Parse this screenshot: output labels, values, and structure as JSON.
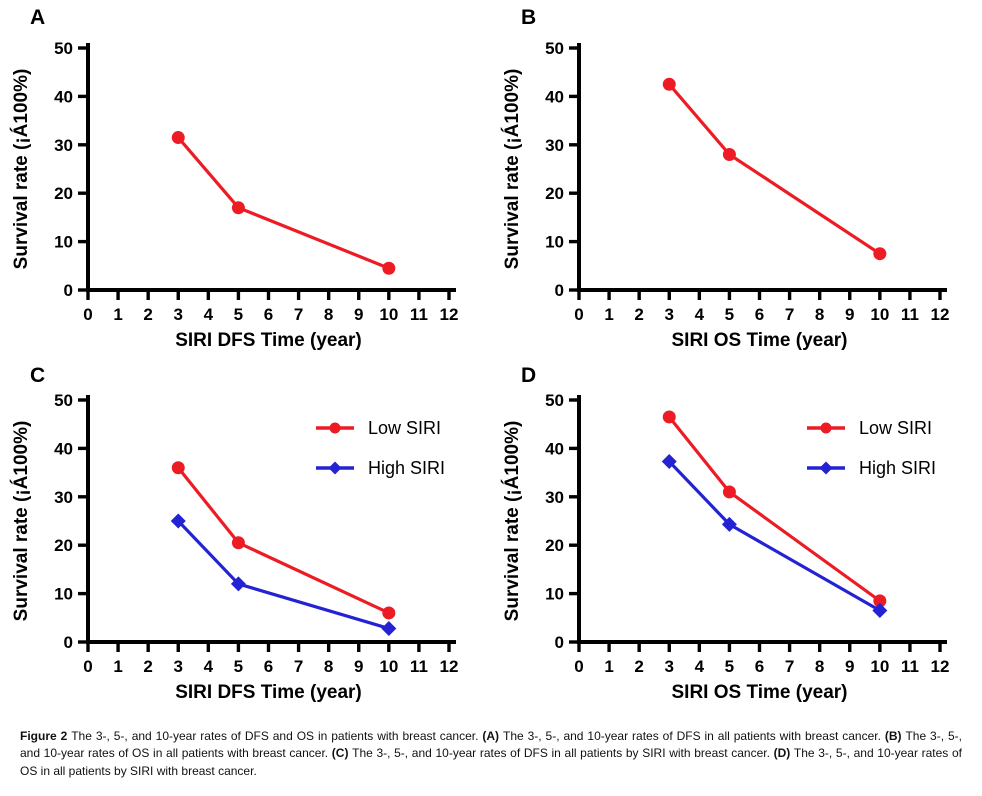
{
  "figure_label": "Figure 2",
  "colors": {
    "low_siri_red": "#ED1C24",
    "high_siri_blue": "#2323D3",
    "axis_black": "#000000"
  },
  "chart_data": [
    {
      "panel": "A",
      "type": "line",
      "xlabel": "SIRI DFS Time (year)",
      "ylabel": "Survival rate (¡Á100%)",
      "x": [
        3,
        5,
        10
      ],
      "xlim": [
        0,
        12
      ],
      "ylim": [
        0,
        50
      ],
      "xticks": [
        0,
        1,
        2,
        3,
        4,
        5,
        6,
        7,
        8,
        9,
        10,
        11,
        12
      ],
      "yticks": [
        0,
        10,
        20,
        30,
        40,
        50
      ],
      "grid": false,
      "legend": false,
      "series": [
        {
          "color": "#ED1C24",
          "marker": "circle",
          "values": [
            31.5,
            17,
            4.5
          ]
        }
      ]
    },
    {
      "panel": "B",
      "type": "line",
      "xlabel": "SIRI OS Time (year)",
      "ylabel": "Survival rate (¡Á100%)",
      "x": [
        3,
        5,
        10
      ],
      "xlim": [
        0,
        12
      ],
      "ylim": [
        0,
        50
      ],
      "xticks": [
        0,
        1,
        2,
        3,
        4,
        5,
        6,
        7,
        8,
        9,
        10,
        11,
        12
      ],
      "yticks": [
        0,
        10,
        20,
        30,
        40,
        50
      ],
      "grid": false,
      "legend": false,
      "series": [
        {
          "color": "#ED1C24",
          "marker": "circle",
          "values": [
            42.5,
            28,
            7.5
          ]
        }
      ]
    },
    {
      "panel": "C",
      "type": "line",
      "xlabel": "SIRI DFS Time (year)",
      "ylabel": "Survival rate (¡Á100%)",
      "x": [
        3,
        5,
        10
      ],
      "xlim": [
        0,
        12
      ],
      "ylim": [
        0,
        50
      ],
      "xticks": [
        0,
        1,
        2,
        3,
        4,
        5,
        6,
        7,
        8,
        9,
        10,
        11,
        12
      ],
      "yticks": [
        0,
        10,
        20,
        30,
        40,
        50
      ],
      "grid": false,
      "legend": true,
      "legend_position": "top-right",
      "series": [
        {
          "name": "Low SIRI",
          "color": "#ED1C24",
          "marker": "circle",
          "values": [
            36,
            20.5,
            6
          ]
        },
        {
          "name": "High SIRI",
          "color": "#2323D3",
          "marker": "diamond",
          "values": [
            25,
            12,
            2.8
          ]
        }
      ]
    },
    {
      "panel": "D",
      "type": "line",
      "xlabel": "SIRI OS Time (year)",
      "ylabel": "Survival rate (¡Á100%)",
      "x": [
        3,
        5,
        10
      ],
      "xlim": [
        0,
        12
      ],
      "ylim": [
        0,
        50
      ],
      "xticks": [
        0,
        1,
        2,
        3,
        4,
        5,
        6,
        7,
        8,
        9,
        10,
        11,
        12
      ],
      "yticks": [
        0,
        10,
        20,
        30,
        40,
        50
      ],
      "grid": false,
      "legend": true,
      "legend_position": "top-right",
      "series": [
        {
          "name": "Low SIRI",
          "color": "#ED1C24",
          "marker": "circle",
          "values": [
            46.5,
            31,
            8.5
          ]
        },
        {
          "name": "High SIRI",
          "color": "#2323D3",
          "marker": "diamond",
          "values": [
            37.3,
            24.3,
            6.5
          ]
        }
      ]
    }
  ],
  "caption": {
    "segments": [
      {
        "text": "Figure 2 ",
        "bold": true
      },
      {
        "text": "The 3-, 5-, and 10-year rates of DFS and OS in patients with breast cancer. ",
        "bold": false
      },
      {
        "text": "(A) ",
        "bold": true
      },
      {
        "text": "The 3-, 5-, and 10-year rates of DFS in all patients with breast cancer. ",
        "bold": false
      },
      {
        "text": "(B) ",
        "bold": true
      },
      {
        "text": "The 3-, 5-, and 10-year rates of OS in all patients with breast cancer. ",
        "bold": false
      },
      {
        "text": "(C) ",
        "bold": true
      },
      {
        "text": "The 3-, 5-, and 10-year rates of DFS in all patients by SIRI with breast cancer. ",
        "bold": false
      },
      {
        "text": "(D) ",
        "bold": true
      },
      {
        "text": "The 3-, 5-, and 10-year rates of OS in all patients by SIRI with breast cancer.",
        "bold": false
      }
    ]
  }
}
